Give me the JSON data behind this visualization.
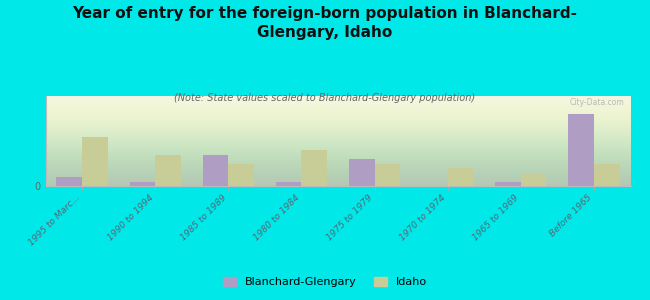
{
  "title": "Year of entry for the foreign-born population in Blanchard-\nGlengary, Idaho",
  "subtitle": "(Note: State values scaled to Blanchard-Glengary population)",
  "categories": [
    "1995 to Marc...",
    "1990 to 1994",
    "1985 to 1989",
    "1980 to 1984",
    "1975 to 1979",
    "1970 to 1974",
    "1965 to 1969",
    "Before 1965"
  ],
  "blanchard_values": [
    1.0,
    0.5,
    3.5,
    0.5,
    3.0,
    0.0,
    0.5,
    8.0
  ],
  "idaho_values": [
    5.5,
    3.5,
    2.5,
    4.0,
    2.5,
    2.0,
    1.5,
    2.5
  ],
  "blanchard_color": "#b09dc4",
  "idaho_color": "#c8cc96",
  "background_color": "#00e8e8",
  "watermark": "City-Data.com",
  "bar_width": 0.35,
  "ylim": [
    0,
    10
  ],
  "legend_labels": [
    "Blanchard-Glengary",
    "Idaho"
  ]
}
